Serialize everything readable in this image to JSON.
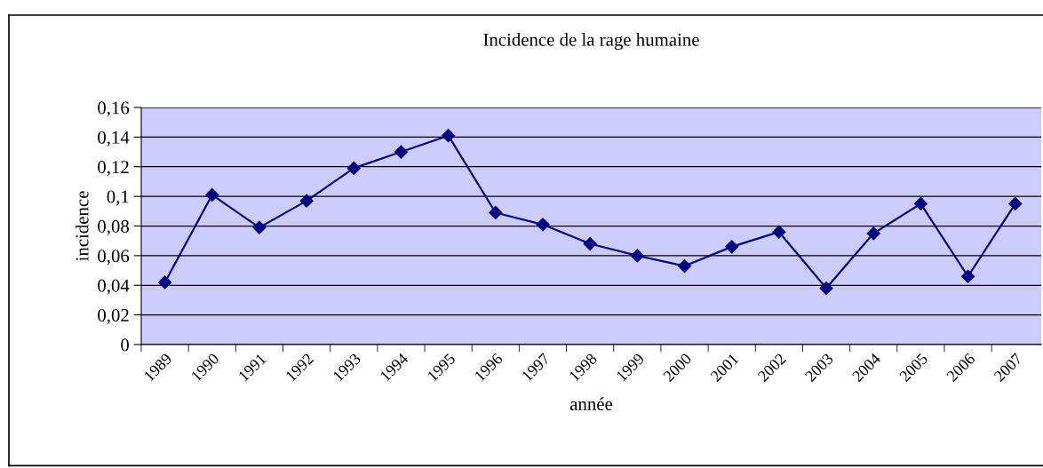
{
  "chart_data": {
    "type": "line",
    "title": "Incidence de la rage humaine",
    "xlabel": "année",
    "ylabel": "incidence",
    "categories": [
      "1989",
      "1990",
      "1991",
      "1992",
      "1993",
      "1994",
      "1995",
      "1996",
      "1997",
      "1998",
      "1999",
      "2000",
      "2001",
      "2002",
      "2003",
      "2004",
      "2005",
      "2006",
      "2007"
    ],
    "series": [
      {
        "color": "#000080",
        "values": [
          0.042,
          0.101,
          0.079,
          0.097,
          0.119,
          0.13,
          0.141,
          0.089,
          0.081,
          0.068,
          0.06,
          0.053,
          0.066,
          0.076,
          0.038,
          0.075,
          0.095,
          0.046,
          0.095
        ]
      }
    ],
    "ylim": [
      0,
      0.16
    ],
    "yticks": [
      {
        "value": 0,
        "label": "0"
      },
      {
        "value": 0.02,
        "label": "0,02"
      },
      {
        "value": 0.04,
        "label": "0,04"
      },
      {
        "value": 0.06,
        "label": "0,06"
      },
      {
        "value": 0.08,
        "label": "0,08"
      },
      {
        "value": 0.1,
        "label": "0,1"
      },
      {
        "value": 0.12,
        "label": "0,12"
      },
      {
        "value": 0.14,
        "label": "0,14"
      },
      {
        "value": 0.16,
        "label": "0,16"
      }
    ],
    "grid": "y",
    "marker": "diamond",
    "line_style": "solid"
  }
}
